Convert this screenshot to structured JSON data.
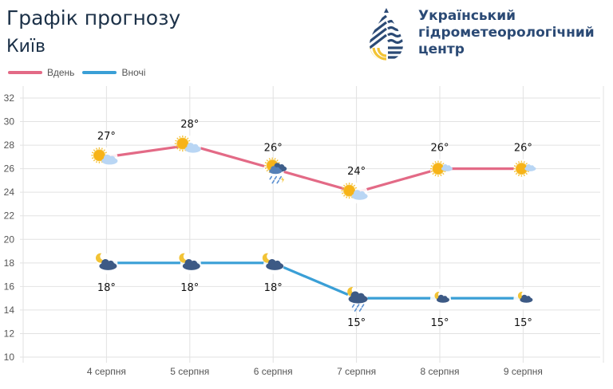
{
  "header": {
    "title": "Графік прогнозу",
    "city": "Київ"
  },
  "logo": {
    "line1": "Український",
    "line2": "гідрометеорологічний",
    "line3": "центр",
    "colors": {
      "navy": "#2b4a75",
      "yellow": "#f2c335"
    }
  },
  "legend": [
    {
      "label": "Вдень",
      "color": "#e36a86"
    },
    {
      "label": "Вночі",
      "color": "#3a9fd6"
    }
  ],
  "chart_data": {
    "type": "line",
    "title": "Графік прогнозу",
    "subtitle": "Київ",
    "xlabel": "",
    "ylabel": "",
    "categories": [
      "4 серпня",
      "5 серпня",
      "6 серпня",
      "7 серпня",
      "8 серпня",
      "9 серпня"
    ],
    "series": [
      {
        "name": "Вдень",
        "color": "#e36a86",
        "values": [
          27,
          28,
          26,
          24,
          26,
          26
        ],
        "labels": [
          "27°",
          "28°",
          "26°",
          "24°",
          "26°",
          "26°"
        ],
        "icons": [
          "sun-cloud",
          "sun-cloud",
          "sun-thunderstorm-rain",
          "sun-cloud",
          "sun-small-cloud",
          "sun-small-cloud"
        ]
      },
      {
        "name": "Вночі",
        "color": "#3a9fd6",
        "values": [
          18,
          18,
          18,
          15,
          15,
          15
        ],
        "labels": [
          "18°",
          "18°",
          "18°",
          "15°",
          "15°",
          "15°"
        ],
        "icons": [
          "moon-dark-cloud",
          "moon-dark-cloud",
          "moon-dark-cloud",
          "moon-cloud-rain",
          "moon-small-cloud",
          "moon-small-cloud"
        ]
      }
    ],
    "yticks": [
      10,
      12,
      14,
      16,
      18,
      20,
      22,
      24,
      26,
      28,
      30,
      32
    ],
    "ylim": [
      10,
      32
    ],
    "grid": true,
    "legend_position": "top-left"
  }
}
